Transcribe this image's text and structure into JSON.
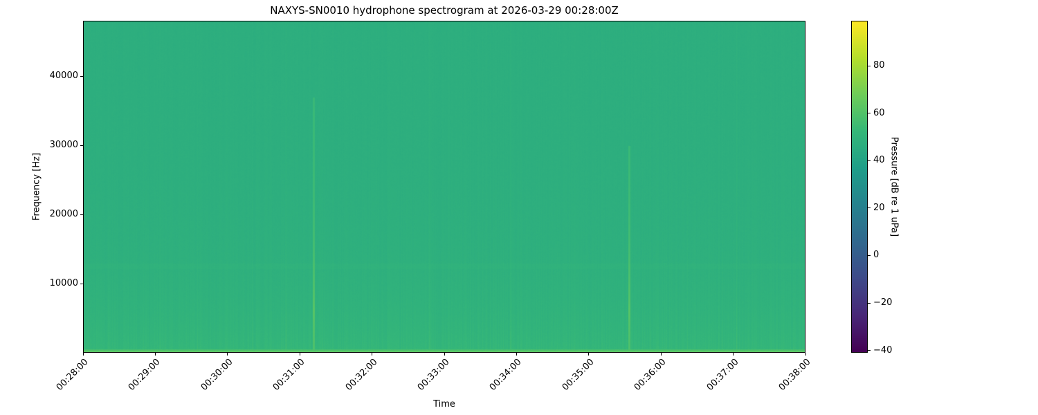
{
  "chart_data": {
    "type": "heatmap",
    "title": "NAXYS-SN0010 hydrophone spectrogram at 2026-03-29 00:28:00Z",
    "xlabel": "Time",
    "ylabel": "Frequency [Hz]",
    "x_ticks": [
      "00:28:00",
      "00:29:00",
      "00:30:00",
      "00:31:00",
      "00:32:00",
      "00:33:00",
      "00:34:00",
      "00:35:00",
      "00:36:00",
      "00:37:00",
      "00:38:00"
    ],
    "xlim": [
      "00:28:00",
      "00:38:00"
    ],
    "y_ticks": [
      10000,
      20000,
      30000,
      40000
    ],
    "ylim": [
      0,
      48000
    ],
    "colorbar": {
      "label": "Pressure [dB re 1 uPa]",
      "colormap": "viridis",
      "ticks": [
        -40,
        -20,
        0,
        20,
        40,
        60,
        80
      ],
      "range": [
        -41,
        99
      ]
    },
    "approx_levels_db": {
      "background_high_freq": 47,
      "background_low_freq": 52,
      "lowest_band_near_0hz": 65
    },
    "notable_transients": [
      {
        "time": "00:31:11",
        "freq_range_hz": [
          0,
          37000
        ],
        "peak_db": 62
      },
      {
        "time": "00:35:34",
        "freq_range_hz": [
          0,
          30000
        ],
        "peak_db": 62
      }
    ],
    "grid": false
  }
}
